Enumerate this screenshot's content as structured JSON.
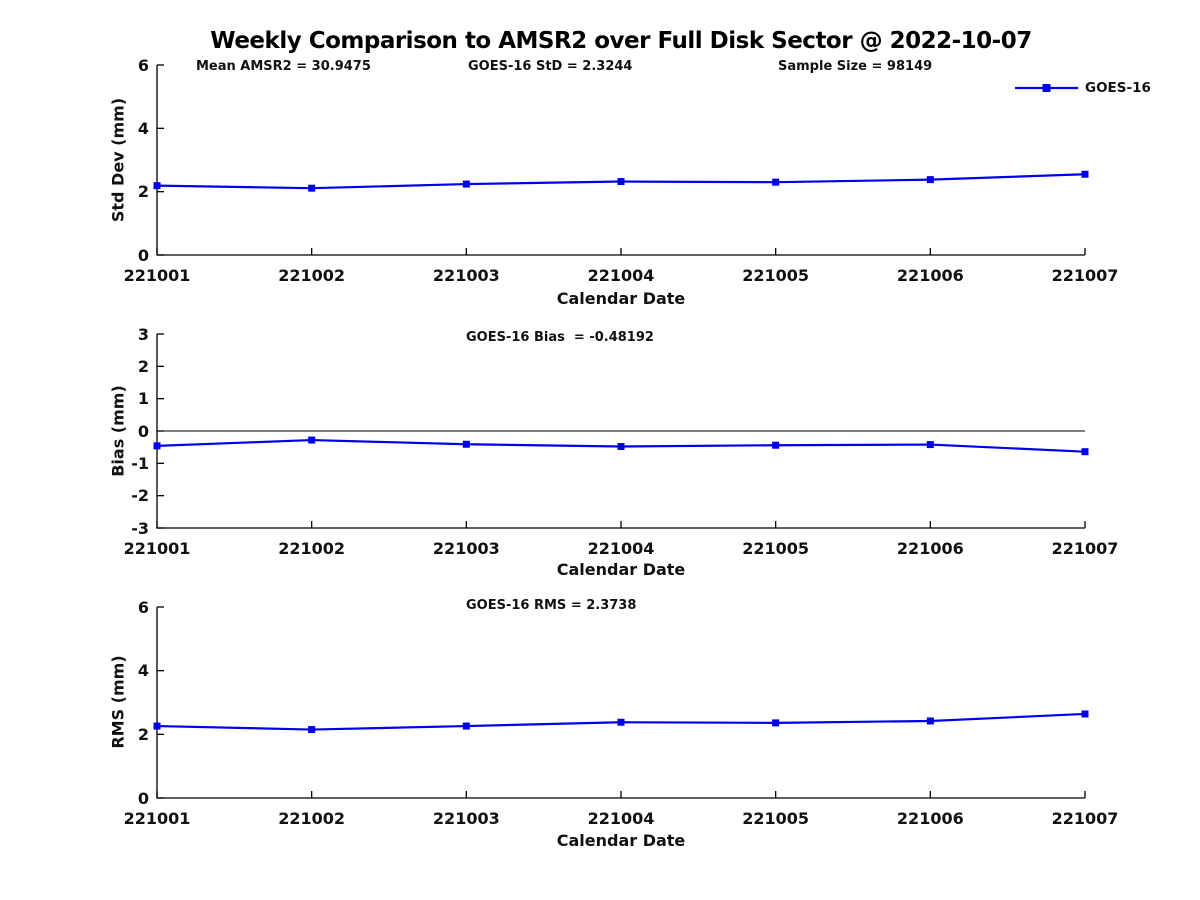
{
  "figure": {
    "title": "Weekly Comparison to AMSR2 over Full Disk Sector @ 2022-10-07"
  },
  "legend": {
    "label": "GOES-16"
  },
  "colors": {
    "series": "#0000ee",
    "axis": "#000000",
    "text": "#111111"
  },
  "x_axis": {
    "label": "Calendar Date",
    "categories": [
      "221001",
      "221002",
      "221003",
      "221004",
      "221005",
      "221006",
      "221007"
    ]
  },
  "chart_data": [
    {
      "type": "line",
      "name": "std-dev",
      "title": "",
      "ylabel": "Std Dev (mm)",
      "ylim": [
        0,
        6
      ],
      "yticks": [
        0,
        2,
        4,
        6
      ],
      "grid": false,
      "legend_position": "top-right",
      "zero_line": false,
      "annotations": [
        "Mean AMSR2 = 30.9475",
        "GOES-16 StD = 2.3244",
        "Sample Size = 98149"
      ],
      "categories": [
        "221001",
        "221002",
        "221003",
        "221004",
        "221005",
        "221006",
        "221007"
      ],
      "series": [
        {
          "name": "GOES-16",
          "marker": "square",
          "values": [
            2.19,
            2.11,
            2.24,
            2.32,
            2.3,
            2.38,
            2.55
          ]
        }
      ]
    },
    {
      "type": "line",
      "name": "bias",
      "title": "",
      "ylabel": "Bias (mm)",
      "ylim": [
        -3,
        3
      ],
      "yticks": [
        3,
        2,
        1,
        0,
        -1,
        -2,
        -3
      ],
      "grid": false,
      "zero_line": true,
      "annotations": [
        "GOES-16 Bias  = -0.48192"
      ],
      "categories": [
        "221001",
        "221002",
        "221003",
        "221004",
        "221005",
        "221006",
        "221007"
      ],
      "series": [
        {
          "name": "GOES-16",
          "marker": "square",
          "values": [
            -0.46,
            -0.28,
            -0.41,
            -0.48,
            -0.44,
            -0.42,
            -0.64
          ]
        }
      ]
    },
    {
      "type": "line",
      "name": "rms",
      "title": "",
      "ylabel": "RMS (mm)",
      "ylim": [
        0,
        6
      ],
      "yticks": [
        0,
        2,
        4,
        6
      ],
      "grid": false,
      "zero_line": false,
      "annotations": [
        "GOES-16 RMS = 2.3738"
      ],
      "categories": [
        "221001",
        "221002",
        "221003",
        "221004",
        "221005",
        "221006",
        "221007"
      ],
      "series": [
        {
          "name": "GOES-16",
          "marker": "square",
          "values": [
            2.26,
            2.15,
            2.26,
            2.38,
            2.36,
            2.42,
            2.64
          ]
        }
      ]
    }
  ]
}
